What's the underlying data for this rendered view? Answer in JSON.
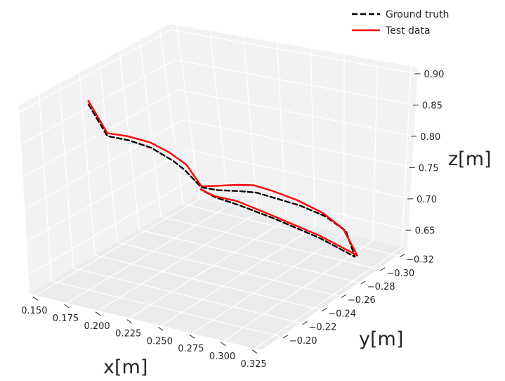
{
  "chart_data": {
    "type": "line",
    "projection": "3d",
    "xlabel": "x[m]",
    "ylabel": "y[m]",
    "zlabel": "z[m]",
    "x_ticks": [
      "0.150",
      "0.175",
      "0.200",
      "0.225",
      "0.250",
      "0.275",
      "0.300",
      "0.325"
    ],
    "y_ticks": [
      "-0.20",
      "-0.22",
      "-0.24",
      "-0.26",
      "-0.28",
      "-0.30",
      "-0.32"
    ],
    "z_ticks": [
      "0.65",
      "0.70",
      "0.75",
      "0.80",
      "0.85",
      "0.90"
    ],
    "grid": true,
    "legend_position": "top-right",
    "series": [
      {
        "name": "Ground truth",
        "color": "#000000",
        "style": "dashed",
        "points": [
          [
            0.15,
            -0.24,
            0.862
          ],
          [
            0.161,
            -0.242,
            0.815
          ],
          [
            0.175,
            -0.245,
            0.812
          ],
          [
            0.19,
            -0.248,
            0.804
          ],
          [
            0.205,
            -0.25,
            0.788
          ],
          [
            0.212,
            -0.252,
            0.775
          ],
          [
            0.222,
            -0.255,
            0.749
          ],
          [
            0.228,
            -0.264,
            0.738
          ],
          [
            0.238,
            -0.272,
            0.733
          ],
          [
            0.246,
            -0.279,
            0.727
          ],
          [
            0.255,
            -0.286,
            0.715
          ],
          [
            0.267,
            -0.296,
            0.698
          ],
          [
            0.285,
            -0.3,
            0.684
          ],
          [
            0.302,
            -0.3,
            0.668
          ],
          [
            0.318,
            -0.29,
            0.645
          ],
          [
            0.305,
            -0.27,
            0.69
          ],
          [
            0.282,
            -0.252,
            0.73
          ],
          [
            0.258,
            -0.246,
            0.747
          ],
          [
            0.24,
            -0.247,
            0.749
          ],
          [
            0.225,
            -0.252,
            0.749
          ]
        ]
      },
      {
        "name": "Test data",
        "color": "#ff0000",
        "style": "solid",
        "points": [
          [
            0.15,
            -0.24,
            0.868
          ],
          [
            0.162,
            -0.241,
            0.821
          ],
          [
            0.176,
            -0.243,
            0.821
          ],
          [
            0.191,
            -0.246,
            0.815
          ],
          [
            0.204,
            -0.248,
            0.803
          ],
          [
            0.215,
            -0.25,
            0.787
          ],
          [
            0.223,
            -0.254,
            0.752
          ],
          [
            0.228,
            -0.262,
            0.747
          ],
          [
            0.238,
            -0.27,
            0.745
          ],
          [
            0.246,
            -0.276,
            0.742
          ],
          [
            0.255,
            -0.283,
            0.73
          ],
          [
            0.267,
            -0.293,
            0.71
          ],
          [
            0.285,
            -0.297,
            0.693
          ],
          [
            0.302,
            -0.297,
            0.675
          ],
          [
            0.32,
            -0.29,
            0.648
          ],
          [
            0.306,
            -0.269,
            0.695
          ],
          [
            0.282,
            -0.25,
            0.737
          ],
          [
            0.258,
            -0.245,
            0.754
          ],
          [
            0.24,
            -0.246,
            0.752
          ],
          [
            0.225,
            -0.251,
            0.751
          ]
        ]
      }
    ]
  }
}
